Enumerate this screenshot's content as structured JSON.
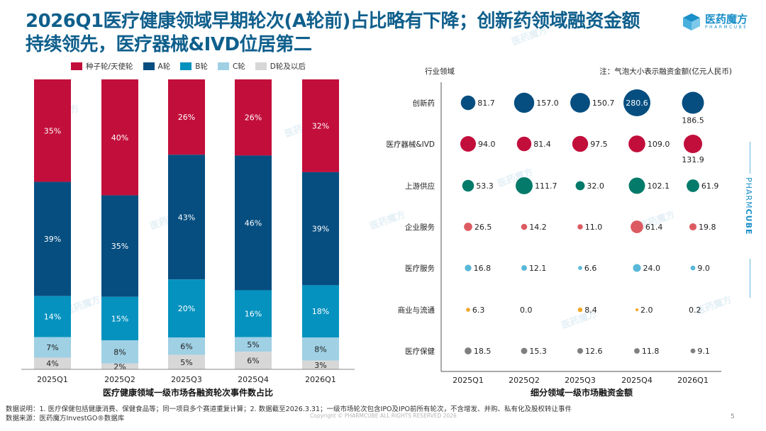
{
  "header": {
    "title_line1": "2026Q1医疗健康领域早期轮次(A轮前)占比略有下降；创新药领域融资金额",
    "title_line2": "持续领先，医疗器械&IVD位居第二",
    "logo_cn": "医药魔方",
    "logo_en": "PHARMCUBE"
  },
  "side_brand": {
    "light": "PHARM",
    "bold": "CUBE"
  },
  "watermark": "医药魔方",
  "chart_data": [
    {
      "type": "bar",
      "stacked": true,
      "percent": true,
      "title": "医疗健康领域一级市场各融资轮次事件数占比",
      "categories": [
        "2025Q1",
        "2025Q2",
        "2025Q3",
        "2025Q4",
        "2026Q1"
      ],
      "series": [
        {
          "name": "种子轮/天使轮",
          "color": "#c20e3b",
          "label_color": "#ffffff",
          "values": [
            35,
            40,
            26,
            26,
            32
          ]
        },
        {
          "name": "A轮",
          "color": "#064e80",
          "label_color": "#ffffff",
          "values": [
            39,
            35,
            43,
            46,
            39
          ]
        },
        {
          "name": "B轮",
          "color": "#0592bf",
          "label_color": "#ffffff",
          "values": [
            14,
            15,
            20,
            16,
            18
          ]
        },
        {
          "name": "C轮",
          "color": "#9fd0e4",
          "label_color": "#222222",
          "values": [
            7,
            8,
            6,
            5,
            8
          ]
        },
        {
          "name": "D轮及以后",
          "color": "#d7d7d7",
          "label_color": "#222222",
          "values": [
            4,
            2,
            5,
            6,
            3
          ]
        }
      ],
      "legend": "top",
      "ylim": [
        0,
        100
      ]
    },
    {
      "type": "scatter",
      "subtype": "bubble",
      "title": "细分领域一级市场融资金额",
      "ylabel": "行业领域",
      "note": "注：气泡大小表示融资金额(亿元人民币)",
      "categories": [
        "2025Q1",
        "2025Q2",
        "2025Q3",
        "2025Q4",
        "2026Q1"
      ],
      "series": [
        {
          "name": "创新药",
          "color": "#064e80",
          "values": [
            81.7,
            157.0,
            150.7,
            280.6,
            186.5
          ],
          "labels": [
            "81.7",
            "157.0",
            "150.7",
            "280.6",
            "186.5"
          ]
        },
        {
          "name": "医疗器械&IVD",
          "color": "#c20e3b",
          "values": [
            94.0,
            81.4,
            97.5,
            109.0,
            131.9
          ],
          "labels": [
            "94.0",
            "81.4",
            "97.5",
            "109.0",
            "131.9"
          ]
        },
        {
          "name": "上游供应",
          "color": "#047a6a",
          "values": [
            53.3,
            111.7,
            32.0,
            102.1,
            61.9
          ],
          "labels": [
            "53.3",
            "111.7",
            "32.0",
            "102.1",
            "61.9"
          ]
        },
        {
          "name": "企业服务",
          "color": "#dc5a61",
          "values": [
            26.5,
            14.2,
            11.0,
            61.4,
            19.8
          ],
          "labels": [
            "26.5",
            "14.2",
            "11.0",
            "61.4",
            "19.8"
          ]
        },
        {
          "name": "医疗服务",
          "color": "#5ab8d8",
          "values": [
            16.8,
            12.1,
            6.6,
            24.0,
            9.0
          ],
          "labels": [
            "16.8",
            "12.1",
            "6.6",
            "24.0",
            "9.0"
          ]
        },
        {
          "name": "商业与流通",
          "color": "#f0a82a",
          "values": [
            6.3,
            0.0,
            8.4,
            2.0,
            0.2
          ],
          "labels": [
            "6.3",
            "0.0",
            "8.4",
            "2.0",
            "0.2"
          ]
        },
        {
          "name": "医疗保健",
          "color": "#7f7f7f",
          "values": [
            18.5,
            15.3,
            12.6,
            11.8,
            9.1
          ],
          "labels": [
            "18.5",
            "15.3",
            "12.6",
            "11.8",
            "9.1"
          ]
        }
      ]
    }
  ],
  "footer": {
    "note": "数据说明：1. 医疗保健包括健康消费、保健食品等；同一项目多个赛道重复计算；2. 数据截至2026.3.31；一级市场轮次包含IPO及IPO前所有轮次，不含增发、并购、私有化及股权转让事件",
    "source": "数据来源：医药魔方InvestGO®数据库",
    "copyright": "Copyright © PHARMCUBE ALL RIGHTS RESERVED 2026",
    "page_number": "5"
  }
}
